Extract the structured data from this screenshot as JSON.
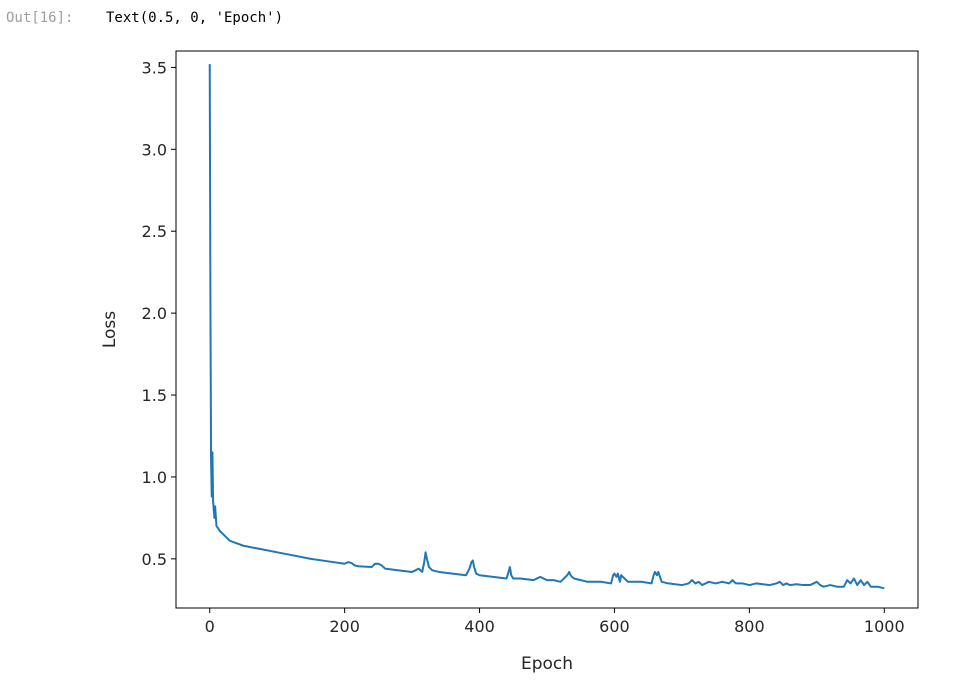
{
  "cell": {
    "prompt": "Out[16]:",
    "output_text": "Text(0.5, 0, 'Epoch')"
  },
  "colors": {
    "line": "#1f77b4",
    "axes": "#000000",
    "text": "#262626"
  },
  "chart_data": {
    "type": "line",
    "title": "",
    "xlabel": "Epoch",
    "ylabel": "Loss",
    "xlim": [
      -50,
      1050
    ],
    "ylim": [
      0.2,
      3.6
    ],
    "xticks": [
      0,
      200,
      400,
      600,
      800,
      1000
    ],
    "yticks": [
      0.5,
      1.0,
      1.5,
      2.0,
      2.5,
      3.0,
      3.5
    ],
    "xtick_labels": [
      "0",
      "200",
      "400",
      "600",
      "800",
      "1000"
    ],
    "ytick_labels": [
      "0.5",
      "1.0",
      "1.5",
      "2.0",
      "2.5",
      "3.0",
      "3.5"
    ],
    "grid": false,
    "legend": "none",
    "series": [
      {
        "x": [
          0,
          1,
          2,
          3,
          4,
          5,
          6,
          7,
          8,
          10,
          12,
          15,
          20,
          25,
          30,
          40,
          50,
          75,
          100,
          125,
          150,
          175,
          200,
          205,
          210,
          215,
          220,
          240,
          245,
          250,
          255,
          260,
          280,
          300,
          305,
          310,
          315,
          318,
          320,
          322,
          325,
          330,
          340,
          360,
          380,
          385,
          388,
          390,
          392,
          395,
          400,
          420,
          440,
          443,
          445,
          447,
          450,
          460,
          480,
          490,
          495,
          500,
          510,
          520,
          530,
          533,
          535,
          537,
          540,
          550,
          560,
          580,
          595,
          598,
          600,
          603,
          605,
          608,
          610,
          620,
          640,
          655,
          658,
          660,
          663,
          665,
          670,
          680,
          700,
          710,
          715,
          720,
          725,
          730,
          740,
          750,
          760,
          770,
          775,
          780,
          790,
          800,
          810,
          820,
          830,
          840,
          845,
          850,
          855,
          860,
          870,
          880,
          890,
          895,
          900,
          905,
          910,
          920,
          930,
          940,
          945,
          950,
          955,
          960,
          965,
          970,
          975,
          980,
          990,
          1000
        ],
        "y": [
          3.52,
          2.1,
          1.1,
          0.88,
          1.15,
          0.85,
          0.8,
          0.75,
          0.82,
          0.7,
          0.69,
          0.67,
          0.65,
          0.63,
          0.61,
          0.595,
          0.58,
          0.56,
          0.54,
          0.52,
          0.5,
          0.485,
          0.47,
          0.48,
          0.475,
          0.46,
          0.455,
          0.45,
          0.47,
          0.47,
          0.46,
          0.44,
          0.43,
          0.42,
          0.43,
          0.44,
          0.42,
          0.48,
          0.54,
          0.5,
          0.45,
          0.43,
          0.42,
          0.41,
          0.4,
          0.44,
          0.48,
          0.49,
          0.45,
          0.41,
          0.4,
          0.39,
          0.38,
          0.42,
          0.45,
          0.4,
          0.38,
          0.38,
          0.37,
          0.39,
          0.38,
          0.37,
          0.37,
          0.36,
          0.4,
          0.42,
          0.4,
          0.39,
          0.38,
          0.37,
          0.36,
          0.36,
          0.35,
          0.4,
          0.41,
          0.39,
          0.41,
          0.36,
          0.4,
          0.36,
          0.36,
          0.35,
          0.4,
          0.42,
          0.4,
          0.42,
          0.36,
          0.35,
          0.34,
          0.35,
          0.37,
          0.35,
          0.36,
          0.34,
          0.36,
          0.35,
          0.36,
          0.35,
          0.37,
          0.35,
          0.35,
          0.34,
          0.35,
          0.345,
          0.34,
          0.35,
          0.36,
          0.34,
          0.35,
          0.34,
          0.345,
          0.34,
          0.34,
          0.35,
          0.36,
          0.34,
          0.33,
          0.34,
          0.33,
          0.33,
          0.37,
          0.35,
          0.38,
          0.34,
          0.37,
          0.34,
          0.36,
          0.33,
          0.33,
          0.32
        ]
      }
    ]
  }
}
